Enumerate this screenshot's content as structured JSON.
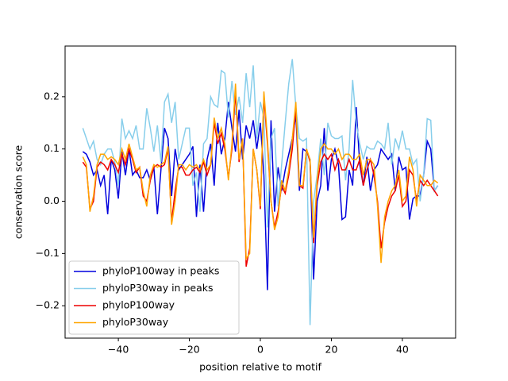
{
  "chart_data": {
    "type": "line",
    "xlabel": "position relative to motif",
    "ylabel": "conservation score",
    "x": [
      -50,
      -49,
      -48,
      -47,
      -46,
      -45,
      -44,
      -43,
      -42,
      -41,
      -40,
      -39,
      -38,
      -37,
      -36,
      -35,
      -34,
      -33,
      -32,
      -31,
      -30,
      -29,
      -28,
      -27,
      -26,
      -25,
      -24,
      -23,
      -22,
      -21,
      -20,
      -19,
      -18,
      -17,
      -16,
      -15,
      -14,
      -13,
      -12,
      -11,
      -10,
      -9,
      -8,
      -7,
      -6,
      -5,
      -4,
      -3,
      -2,
      -1,
      0,
      1,
      2,
      3,
      4,
      5,
      6,
      7,
      8,
      9,
      10,
      11,
      12,
      13,
      14,
      15,
      16,
      17,
      18,
      19,
      20,
      21,
      22,
      23,
      24,
      25,
      26,
      27,
      28,
      29,
      30,
      31,
      32,
      33,
      34,
      35,
      36,
      37,
      38,
      39,
      40,
      41,
      42,
      43,
      44,
      45,
      46,
      47,
      48,
      49,
      50
    ],
    "series": [
      {
        "name": "phyloP100way in peaks",
        "color": "#0000dd",
        "values": [
          0.095,
          0.09,
          0.075,
          0.05,
          0.06,
          0.03,
          0.05,
          -0.025,
          0.08,
          0.06,
          0.005,
          0.095,
          0.05,
          0.1,
          0.05,
          0.06,
          0.045,
          0.045,
          0.06,
          0.04,
          0.065,
          -0.025,
          0.06,
          0.14,
          0.12,
          0.01,
          0.1,
          0.06,
          0.07,
          0.08,
          0.09,
          0.105,
          -0.03,
          0.07,
          -0.02,
          0.08,
          0.11,
          0.03,
          0.15,
          0.09,
          0.12,
          0.19,
          0.14,
          0.095,
          0.175,
          0.08,
          0.145,
          0.12,
          0.155,
          0.1,
          0.15,
          0.05,
          -0.17,
          0.155,
          -0.02,
          0.065,
          0.02,
          0.06,
          0.09,
          0.12,
          0.165,
          0.02,
          0.1,
          0.095,
          0.08,
          -0.15,
          0.0,
          0.03,
          0.14,
          0.02,
          0.08,
          0.1,
          0.07,
          -0.035,
          -0.03,
          0.06,
          0.03,
          0.18,
          0.07,
          0.03,
          0.085,
          0.02,
          0.06,
          0.07,
          0.1,
          0.09,
          0.08,
          0.09,
          0.02,
          0.085,
          0.06,
          0.065,
          -0.035,
          0.005,
          0.01,
          0.01,
          0.05,
          0.115,
          0.1,
          0.02,
          0.03
        ]
      },
      {
        "name": "phyloP30way in peaks",
        "color": "#87ceeb",
        "values": [
          0.14,
          0.12,
          0.1,
          0.115,
          0.08,
          0.07,
          0.09,
          0.1,
          0.1,
          0.075,
          0.03,
          0.158,
          0.12,
          0.135,
          0.12,
          0.145,
          0.1,
          0.1,
          0.178,
          0.14,
          0.095,
          0.145,
          0.075,
          0.19,
          0.205,
          0.15,
          0.19,
          0.08,
          0.11,
          0.14,
          0.14,
          0.03,
          0.055,
          -0.02,
          0.11,
          0.12,
          0.2,
          0.185,
          0.18,
          0.25,
          0.245,
          0.16,
          0.23,
          0.165,
          0.2,
          0.15,
          0.245,
          0.18,
          0.26,
          0.12,
          0.19,
          0.16,
          -0.05,
          0.12,
          0.14,
          -0.01,
          0.07,
          0.15,
          0.225,
          0.272,
          0.18,
          0.12,
          0.115,
          0.12,
          -0.237,
          0.0,
          0.05,
          0.12,
          0.05,
          0.15,
          0.125,
          0.12,
          0.12,
          0.125,
          0.04,
          0.1,
          0.232,
          0.15,
          0.11,
          0.08,
          0.105,
          0.1,
          0.1,
          0.115,
          0.11,
          0.1,
          0.15,
          0.07,
          0.12,
          0.1,
          0.135,
          0.1,
          0.1,
          0.07,
          0.08,
          0.0,
          0.05,
          0.158,
          0.155,
          0.02,
          0.03
        ]
      },
      {
        "name": "phyloP100way",
        "color": "#ee0000",
        "values": [
          0.075,
          0.065,
          -0.015,
          0.0,
          0.065,
          0.075,
          0.07,
          0.06,
          0.08,
          0.07,
          0.055,
          0.09,
          0.07,
          0.1,
          0.08,
          0.055,
          0.065,
          0.01,
          0.0,
          0.04,
          0.065,
          0.07,
          0.065,
          0.07,
          0.1,
          -0.04,
          0.02,
          0.065,
          0.065,
          0.05,
          0.05,
          0.06,
          0.065,
          0.055,
          0.075,
          0.05,
          0.07,
          0.15,
          0.11,
          0.13,
          0.1,
          0.045,
          0.1,
          0.21,
          0.075,
          0.12,
          -0.125,
          -0.09,
          0.1,
          0.06,
          -0.015,
          0.2,
          0.11,
          0.0,
          -0.05,
          -0.02,
          0.03,
          0.015,
          0.05,
          0.1,
          0.18,
          0.03,
          0.025,
          0.1,
          0.075,
          -0.08,
          0.03,
          0.075,
          0.09,
          0.08,
          0.09,
          0.06,
          0.08,
          0.06,
          0.06,
          0.08,
          0.06,
          0.06,
          0.08,
          0.03,
          0.06,
          0.08,
          0.05,
          0.0,
          -0.09,
          -0.04,
          -0.01,
          0.01,
          0.02,
          0.05,
          -0.01,
          0.0,
          0.06,
          0.05,
          0.0,
          0.04,
          0.03,
          0.04,
          0.03,
          0.02,
          0.01
        ]
      },
      {
        "name": "phyloP30way",
        "color": "#ffa500",
        "values": [
          0.085,
          0.07,
          -0.02,
          0.01,
          0.07,
          0.09,
          0.09,
          0.08,
          0.085,
          0.08,
          0.07,
          0.1,
          0.08,
          0.11,
          0.085,
          0.06,
          0.065,
          0.02,
          -0.01,
          0.05,
          0.07,
          0.065,
          0.07,
          0.075,
          0.105,
          -0.045,
          0.0,
          0.07,
          0.07,
          0.06,
          0.07,
          0.065,
          0.07,
          0.06,
          0.08,
          0.06,
          0.07,
          0.16,
          0.12,
          0.14,
          0.11,
          0.04,
          0.11,
          0.225,
          0.08,
          0.12,
          -0.11,
          -0.1,
          0.1,
          0.06,
          -0.01,
          0.21,
          0.12,
          0.0,
          -0.055,
          -0.03,
          0.04,
          0.02,
          0.06,
          0.12,
          0.19,
          0.03,
          0.03,
          0.1,
          0.08,
          -0.07,
          0.04,
          0.1,
          0.11,
          0.1,
          0.1,
          0.09,
          0.1,
          0.08,
          0.09,
          0.09,
          0.08,
          0.08,
          0.09,
          0.05,
          0.08,
          0.08,
          0.07,
          -0.01,
          -0.118,
          -0.03,
          0.0,
          0.02,
          0.03,
          0.06,
          0.0,
          0.01,
          0.085,
          0.06,
          -0.01,
          0.05,
          0.04,
          0.03,
          0.03,
          0.04,
          0.035
        ]
      }
    ],
    "xlim": [
      -55,
      55
    ],
    "ylim": [
      -0.262,
      0.297
    ],
    "xticks": [
      {
        "value": -40,
        "label": "−40"
      },
      {
        "value": -20,
        "label": "−20"
      },
      0,
      20,
      40
    ],
    "yticks": [
      {
        "value": -0.2,
        "label": "−0.2"
      },
      {
        "value": -0.1,
        "label": "−0.1"
      },
      {
        "value": 0,
        "label": "0.0"
      },
      0.1,
      0.2
    ],
    "legend": "lower left"
  }
}
